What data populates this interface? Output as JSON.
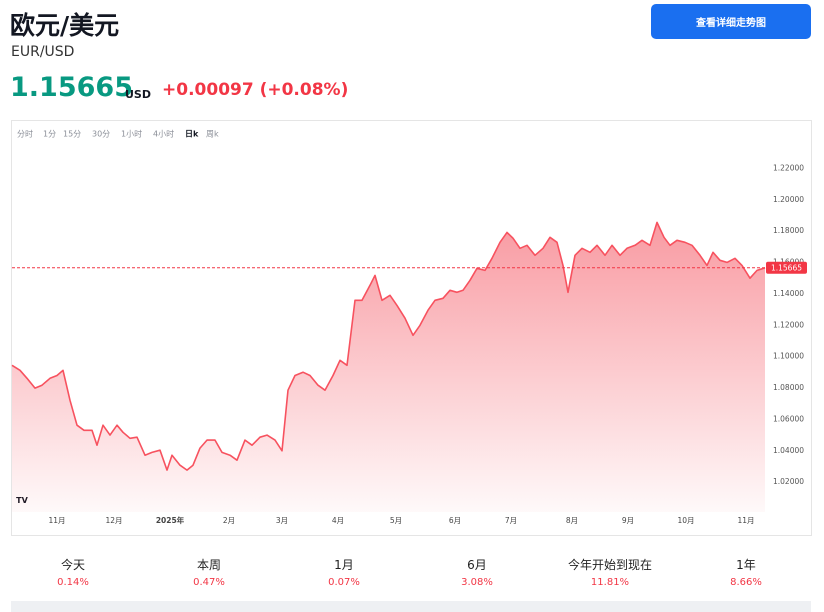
{
  "header": {
    "title": "欧元/美元",
    "symbol": "EUR/USD",
    "currency": "USD",
    "change": "+0.00097 (+0.08%)",
    "button": "查看详细走势图"
  },
  "tabs": [
    "分时",
    "1分",
    "15分",
    "30分",
    "1小时",
    "4小时",
    "日k",
    "周k"
  ],
  "active_tab": "日k",
  "chart_data": {
    "type": "area",
    "color": "#f7525f",
    "grid": false,
    "current_value": 1.15665,
    "x": [
      0,
      8,
      15,
      23,
      30,
      38,
      45,
      51,
      58,
      65,
      72,
      80,
      85,
      91,
      98,
      105,
      111,
      118,
      125,
      133,
      140,
      148,
      155,
      160,
      168,
      175,
      181,
      188,
      195,
      203,
      210,
      218,
      225,
      233,
      240,
      248,
      255,
      263,
      270,
      276,
      283,
      291,
      298,
      306,
      313,
      321,
      328,
      335,
      343,
      350,
      358,
      363,
      370,
      378,
      385,
      393,
      401,
      408,
      416,
      423,
      431,
      438,
      445,
      451,
      458,
      465,
      473,
      480,
      488,
      495,
      501,
      508,
      515,
      523,
      531,
      538,
      545,
      551,
      556,
      563,
      570,
      578,
      585,
      593,
      600,
      608,
      615,
      623,
      630,
      638,
      645,
      652,
      658,
      665,
      673,
      680,
      688,
      695,
      701,
      708,
      715,
      723,
      730,
      738,
      745,
      753
    ],
    "values": [
      1.0945,
      1.0913,
      1.0862,
      1.08,
      1.0818,
      1.0862,
      1.088,
      1.0913,
      1.0722,
      1.0563,
      1.0531,
      1.0531,
      1.0436,
      1.0563,
      1.05,
      1.0563,
      1.0518,
      1.048,
      1.0487,
      1.0372,
      1.039,
      1.0404,
      1.0277,
      1.0372,
      1.0308,
      1.0277,
      1.0308,
      1.0417,
      1.0468,
      1.0468,
      1.039,
      1.0372,
      1.034,
      1.0468,
      1.0436,
      1.0487,
      1.05,
      1.0468,
      1.04,
      1.0786,
      1.088,
      1.0901,
      1.088,
      1.0818,
      1.0786,
      1.088,
      1.0977,
      1.0945,
      1.1359,
      1.1359,
      1.1455,
      1.1518,
      1.1359,
      1.1391,
      1.1327,
      1.1245,
      1.1136,
      1.12,
      1.1296,
      1.1359,
      1.1372,
      1.1423,
      1.141,
      1.1423,
      1.1487,
      1.1563,
      1.155,
      1.1627,
      1.1729,
      1.1792,
      1.1755,
      1.1691,
      1.171,
      1.1646,
      1.1691,
      1.1761,
      1.1729,
      1.1582,
      1.141,
      1.1646,
      1.1691,
      1.1665,
      1.171,
      1.1646,
      1.171,
      1.1646,
      1.1691,
      1.171,
      1.1742,
      1.171,
      1.1856,
      1.1761,
      1.171,
      1.1742,
      1.1729,
      1.171,
      1.1646,
      1.1582,
      1.1665,
      1.1614,
      1.1601,
      1.1627,
      1.1582,
      1.15,
      1.155,
      1.1566
    ],
    "xlim": [
      0,
      753
    ],
    "xticks": [
      {
        "value": 45,
        "label": "11月"
      },
      {
        "value": 102,
        "label": "12月"
      },
      {
        "value": 158,
        "label": "2025年"
      },
      {
        "value": 217,
        "label": "2月"
      },
      {
        "value": 270,
        "label": "3月"
      },
      {
        "value": 326,
        "label": "4月"
      },
      {
        "value": 384,
        "label": "5月"
      },
      {
        "value": 443,
        "label": "6月"
      },
      {
        "value": 499,
        "label": "7月"
      },
      {
        "value": 560,
        "label": "8月"
      },
      {
        "value": 616,
        "label": "9月"
      },
      {
        "value": 674,
        "label": "10月"
      },
      {
        "value": 734,
        "label": "11月"
      }
    ],
    "ylim": [
      1.001,
      1.233
    ],
    "yticks": [
      {
        "value": 1.22,
        "label": "1.22000"
      },
      {
        "value": 1.2,
        "label": "1.20000"
      },
      {
        "value": 1.18,
        "label": "1.18000"
      },
      {
        "value": 1.16,
        "label": "1.16000"
      },
      {
        "value": 1.14,
        "label": "1.14000"
      },
      {
        "value": 1.12,
        "label": "1.12000"
      },
      {
        "value": 1.1,
        "label": "1.10000"
      },
      {
        "value": 1.08,
        "label": "1.08000"
      },
      {
        "value": 1.06,
        "label": "1.06000"
      },
      {
        "value": 1.04,
        "label": "1.04000"
      },
      {
        "value": 1.02,
        "label": "1.02000"
      }
    ]
  },
  "performance": [
    {
      "label": "今天",
      "value": "0.14%"
    },
    {
      "label": "本周",
      "value": "0.47%"
    },
    {
      "label": "1月",
      "value": "0.07%"
    },
    {
      "label": "6月",
      "value": "3.08%"
    },
    {
      "label": "今年开始到现在",
      "value": "11.81%"
    },
    {
      "label": "1年",
      "value": "8.66%"
    }
  ]
}
